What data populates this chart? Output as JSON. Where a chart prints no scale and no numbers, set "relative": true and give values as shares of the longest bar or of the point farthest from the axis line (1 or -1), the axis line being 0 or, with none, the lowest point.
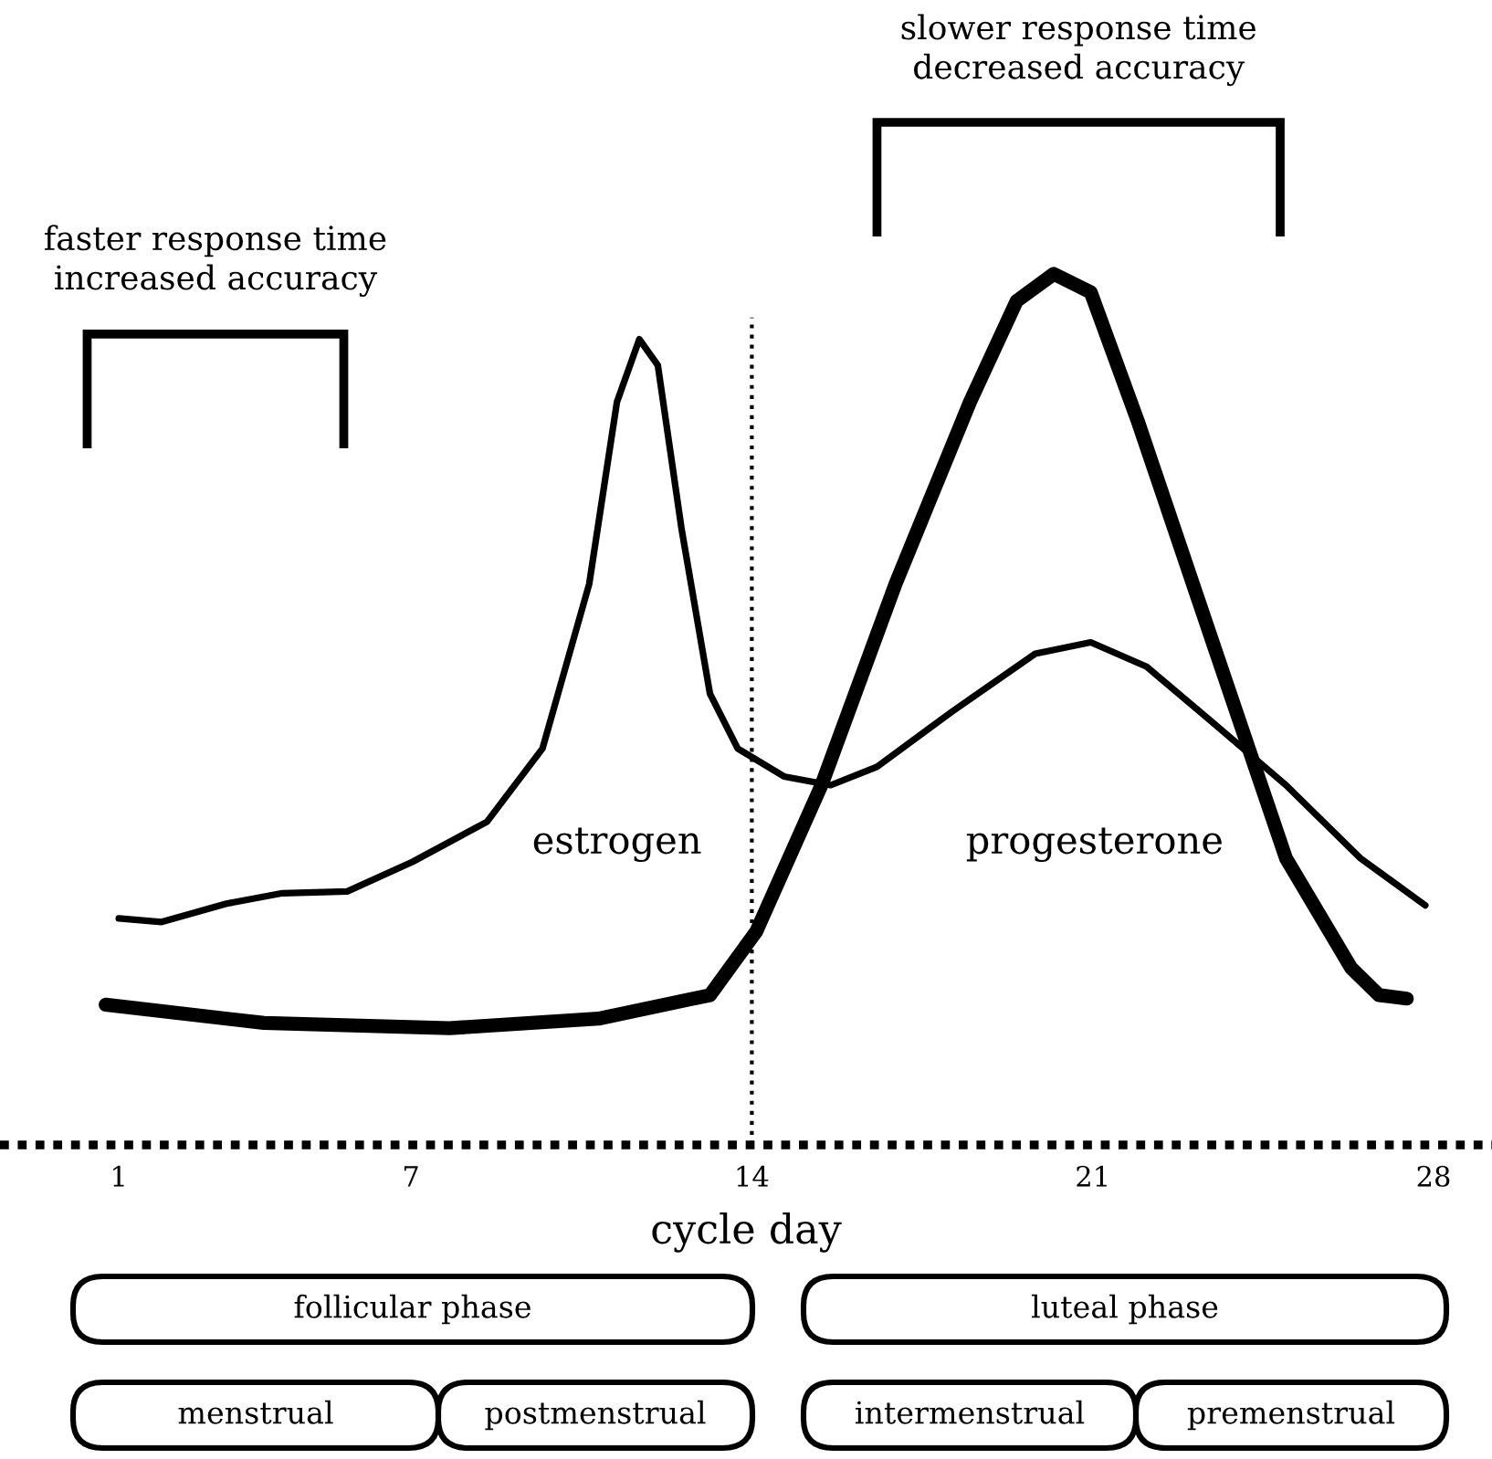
{
  "chart_data": {
    "type": "line",
    "relative": true,
    "xlabel": "cycle day",
    "xlim": [
      -1.44,
      29.2
    ],
    "xticks": [
      1,
      7,
      14,
      21,
      28
    ],
    "grid": false,
    "legend": false,
    "marker": "none",
    "series": [
      {
        "name": "estrogen",
        "color": "#000000",
        "line_style": "solid",
        "x": [
          1.0,
          1.88,
          3.21,
          4.36,
          5.69,
          7.03,
          8.56,
          9.7,
          10.66,
          11.23,
          11.69,
          12.07,
          12.56,
          13.14,
          13.71,
          14.66,
          15.62,
          16.57,
          18.1,
          19.82,
          20.96,
          22.11,
          23.44,
          24.97,
          26.5,
          27.83
        ],
        "values": [
          0.26,
          0.256,
          0.277,
          0.289,
          0.291,
          0.325,
          0.371,
          0.455,
          0.644,
          0.853,
          0.925,
          0.895,
          0.706,
          0.518,
          0.455,
          0.423,
          0.413,
          0.434,
          0.497,
          0.564,
          0.577,
          0.549,
          0.486,
          0.413,
          0.329,
          0.275
        ]
      },
      {
        "name": "progesterone",
        "color": "#000000",
        "line_style": "solid",
        "x": [
          0.73,
          3.98,
          7.79,
          10.85,
          13.14,
          14.09,
          15.43,
          16.95,
          18.48,
          19.44,
          20.2,
          20.96,
          21.92,
          23.44,
          24.97,
          26.31,
          26.88,
          27.45
        ],
        "values": [
          0.161,
          0.14,
          0.134,
          0.145,
          0.172,
          0.245,
          0.413,
          0.644,
          0.853,
          0.969,
          1.0,
          0.979,
          0.832,
          0.581,
          0.329,
          0.203,
          0.172,
          0.168
        ]
      }
    ],
    "ref_lines": [
      {
        "axis": "x",
        "value": 14,
        "line_style": "dotted",
        "color": "#000000"
      }
    ],
    "annotations": [
      "faster response time\nincreased accuracy",
      "slower response time\ndecreased accuracy",
      "follicular phase",
      "luteal phase",
      "menstrual",
      "postmenstrual",
      "intermenstrual",
      "premenstrual"
    ]
  }
}
